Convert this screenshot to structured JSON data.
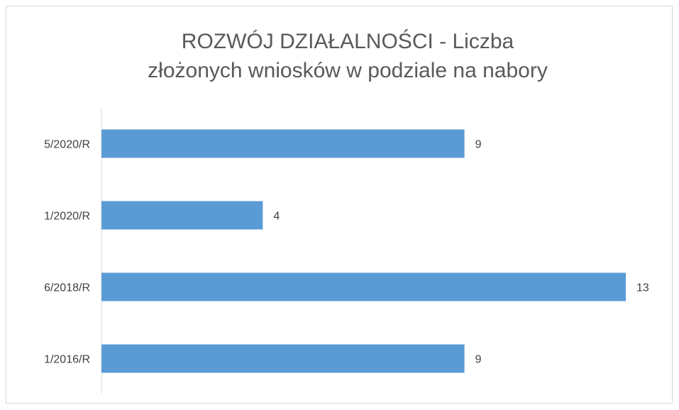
{
  "chart_data": {
    "type": "bar",
    "orientation": "horizontal",
    "title": "ROZWÓJ DZIAŁALNOŚCI - Liczba złożonych wniosków w podziale na nabory",
    "categories": [
      "5/2020/R",
      "1/2020/R",
      "6/2018/R",
      "1/2016/R"
    ],
    "values": [
      9,
      4,
      13,
      9
    ],
    "color": "#5b9bd5"
  }
}
